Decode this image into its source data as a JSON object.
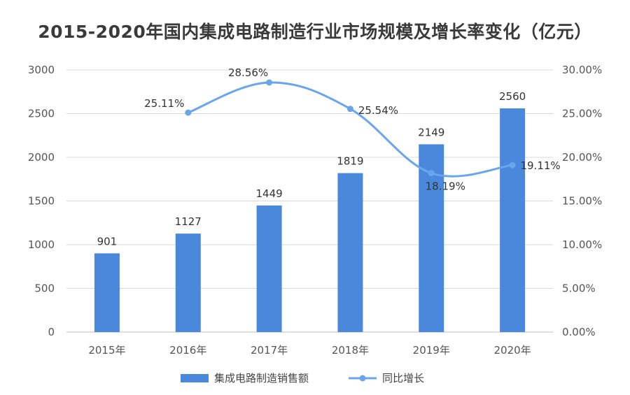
{
  "chart_data": {
    "type": "bar",
    "title": "2015-2020年国内集成电路制造行业市场规模及增长率变化（亿元）",
    "categories": [
      "2015年",
      "2016年",
      "2017年",
      "2018年",
      "2019年",
      "2020年"
    ],
    "series": [
      {
        "name": "集成电路制造销售额",
        "type": "bar",
        "axis": "left",
        "values": [
          901,
          1127,
          1449,
          1819,
          2149,
          2560
        ],
        "labels": [
          "901",
          "1127",
          "1449",
          "1819",
          "2149",
          "2560"
        ],
        "color": "#4a88dc"
      },
      {
        "name": "同比增长",
        "type": "line",
        "axis": "right",
        "values": [
          null,
          25.11,
          28.56,
          25.54,
          18.19,
          19.11
        ],
        "labels": [
          "",
          "25.11%",
          "28.56%",
          "25.54%",
          "18.19%",
          "19.11%"
        ],
        "color": "#6aa5ec"
      }
    ],
    "y_left": {
      "ylim": [
        0,
        3000
      ],
      "ticks": [
        "0",
        "500",
        "1000",
        "1500",
        "2000",
        "2500",
        "3000"
      ]
    },
    "y_right": {
      "ylim": [
        0,
        30
      ],
      "ticks": [
        "0.00%",
        "5.00%",
        "10.00%",
        "15.00%",
        "20.00%",
        "25.00%",
        "30.00%"
      ]
    },
    "grid": true,
    "legend": "bottom"
  }
}
